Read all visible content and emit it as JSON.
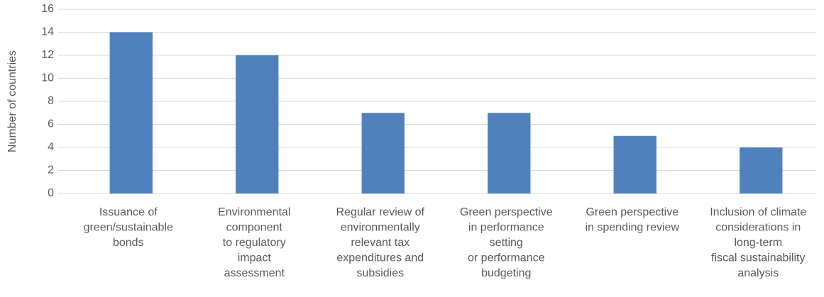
{
  "chart_data": {
    "type": "bar",
    "y_label": "Number of countries",
    "categories": [
      [
        "Issuance of",
        "green/sustainable",
        "bonds"
      ],
      [
        "Environmental",
        "component",
        "to regulatory",
        "impact",
        "assessment"
      ],
      [
        "Regular review of",
        "environmentally",
        "relevant tax",
        "expenditures and",
        "subsidies"
      ],
      [
        "Green perspective",
        "in performance",
        "setting",
        "or performance",
        "budgeting"
      ],
      [
        "Green perspective",
        "in spending review"
      ],
      [
        "Inclusion of climate",
        "considerations in",
        "long-term",
        "fiscal sustainability",
        "analysis"
      ]
    ],
    "values": [
      14,
      12,
      7,
      7,
      5,
      4
    ],
    "color": "#4f81bd",
    "ylim": [
      0,
      16
    ],
    "yticks": [
      0,
      2,
      4,
      6,
      8,
      10,
      12,
      14,
      16
    ],
    "grid": true
  }
}
